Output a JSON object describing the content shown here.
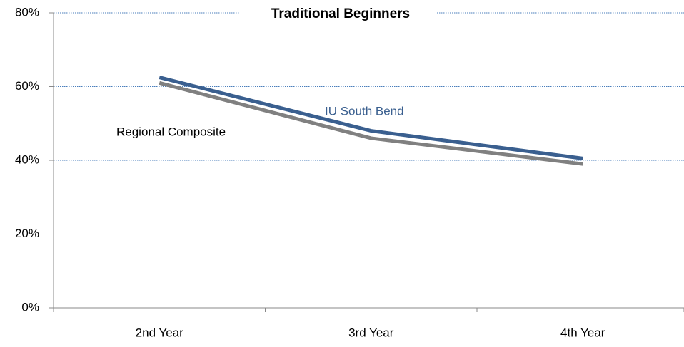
{
  "chart_data": {
    "type": "line",
    "title": "Traditional Beginners",
    "categories": [
      "2nd Year",
      "3rd Year",
      "4th Year"
    ],
    "series": [
      {
        "name": "IU South Bend",
        "color": "#3a5f8f",
        "values": [
          62.5,
          48,
          40.5
        ]
      },
      {
        "name": "Regional Composite",
        "color": "#808080",
        "values": [
          61,
          46,
          39
        ]
      }
    ],
    "ylim": [
      0,
      80
    ],
    "yticks": [
      {
        "value": 0,
        "label": "0%"
      },
      {
        "value": 20,
        "label": "20%"
      },
      {
        "value": 40,
        "label": "40%"
      },
      {
        "value": 60,
        "label": "60%"
      },
      {
        "value": 80,
        "label": "80%"
      }
    ],
    "grid": true
  }
}
